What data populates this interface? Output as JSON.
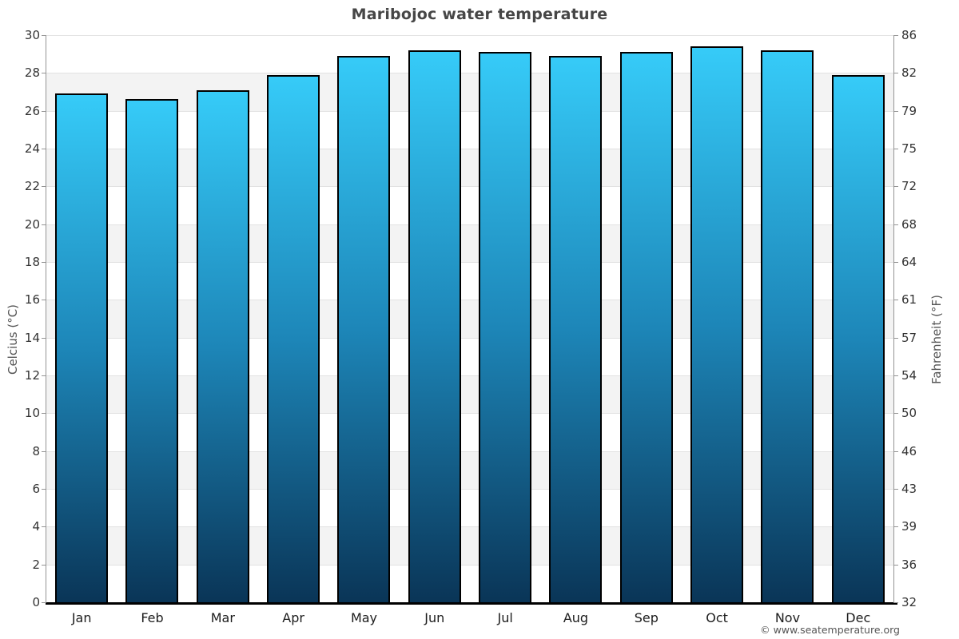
{
  "title": "Maribojoc water temperature",
  "copyright": "© www.seatemperature.org",
  "y_axis_left": {
    "label": "Celcius (°C)"
  },
  "y_axis_right": {
    "label": "Fahrenheit (°F)"
  },
  "chart_data": {
    "type": "bar",
    "title": "Maribojoc water temperature",
    "categories": [
      "Jan",
      "Feb",
      "Mar",
      "Apr",
      "May",
      "Jun",
      "Jul",
      "Aug",
      "Sep",
      "Oct",
      "Nov",
      "Dec"
    ],
    "values": [
      26.9,
      26.6,
      27.1,
      27.9,
      28.9,
      29.2,
      29.1,
      28.9,
      29.1,
      29.4,
      29.2,
      27.9
    ],
    "units": "°C",
    "ylabel_left": "Celcius (°C)",
    "ylabel_right": "Fahrenheit (°F)",
    "ylim": [
      0,
      30
    ],
    "ytick_step_celsius": 2,
    "yticks_celsius": [
      0,
      2,
      4,
      6,
      8,
      10,
      12,
      14,
      16,
      18,
      20,
      22,
      24,
      26,
      28,
      30
    ],
    "yticks_fahrenheit": [
      32,
      36,
      39,
      43,
      46,
      50,
      54,
      57,
      61,
      64,
      68,
      72,
      75,
      79,
      82,
      86
    ],
    "legend": "none",
    "grid": "alternating horizontal bands every 2°C with light gridlines",
    "colors": {
      "bar_gradient_top": "#36cbf8",
      "bar_gradient_mid": "#1d86b8",
      "bar_gradient_bottom": "#0a3557",
      "bar_border": "#000000",
      "band_gray": "#f3f3f3",
      "band_white": "#ffffff",
      "gridline": "#e2e2e2",
      "y_axis_line": "#949494",
      "x_axis_line": "#000000",
      "tick_text": "#333333",
      "title_text": "#464646",
      "axis_title_text": "#555555",
      "copyright_text": "#555555"
    }
  }
}
